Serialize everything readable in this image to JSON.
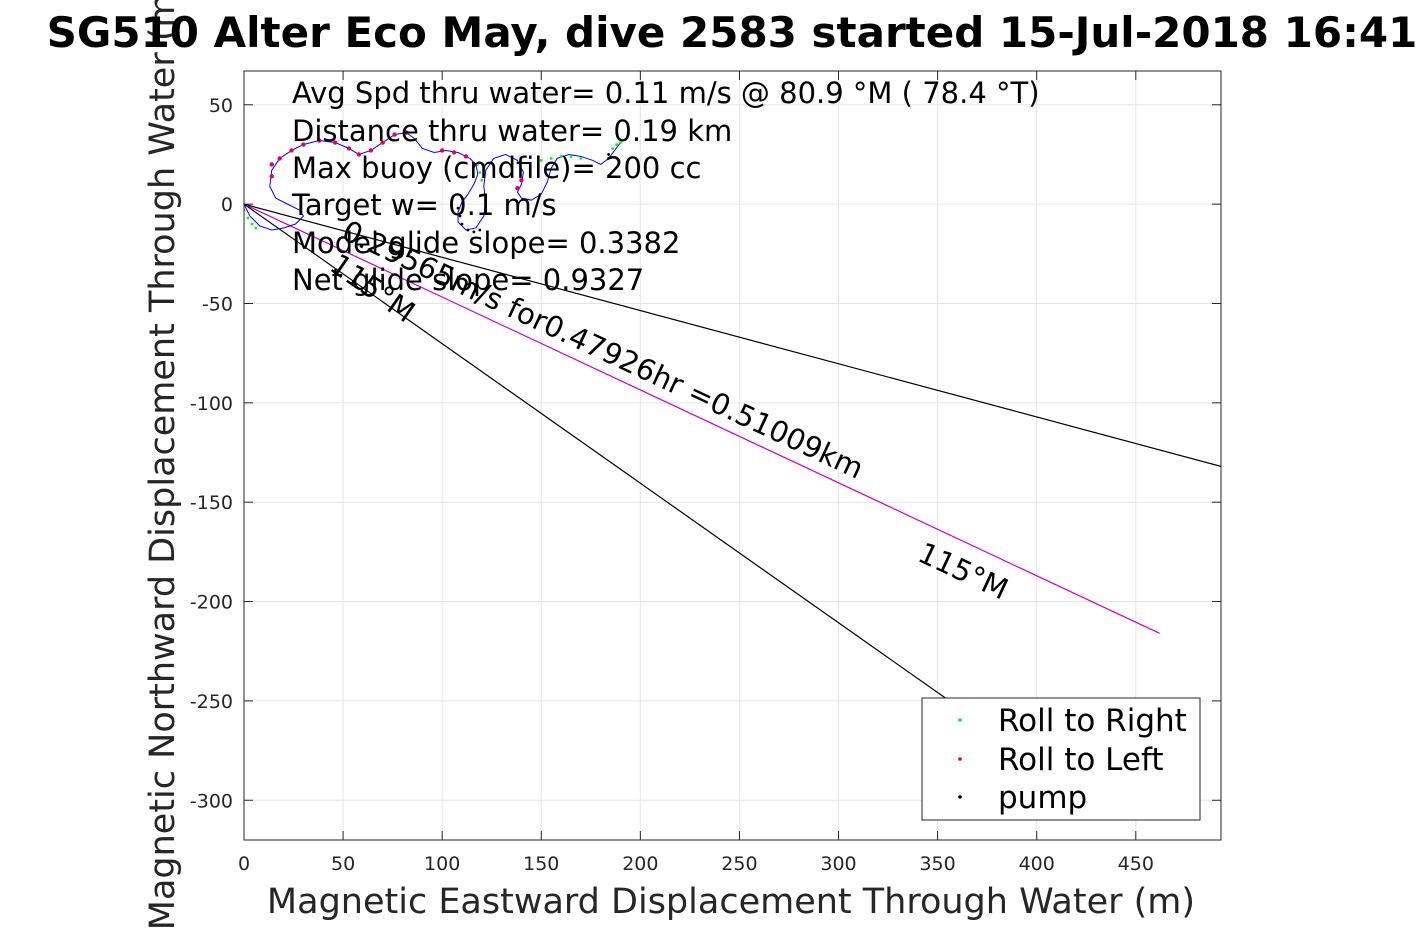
{
  "chart_data": {
    "type": "scatter",
    "title": "SG510 Alter Eco May, dive 2583 started 15-Jul-2018 16:41",
    "xlabel": "Magnetic Eastward Displacement Through Water (m)",
    "ylabel": "Magnetic Northward Displacement Through Water (m)",
    "xlim": [
      0,
      493
    ],
    "ylim": [
      -320,
      67
    ],
    "xticks": [
      0,
      50,
      100,
      150,
      200,
      250,
      300,
      350,
      400,
      450
    ],
    "yticks": [
      50,
      0,
      -50,
      -100,
      -150,
      -200,
      -250,
      -300
    ],
    "grid": true,
    "annotations": [
      "Avg Spd thru water=  0.11 m/s @  80.9 °M ( 78.4 °T)",
      "Distance thru water=  0.19 km",
      "Max buoy (cmdfile)= 200 cc",
      "Target w= 0.1 m/s",
      "Model glide slope= 0.3382",
      "Net glide slope= 0.9327"
    ],
    "line_labels": {
      "upper_speed": "0.29565m/s for0.47926hr =0.51009km",
      "lower_heading": "115°M",
      "heading_label": "115°M"
    },
    "reference_lines": [
      {
        "name": "upper",
        "from": [
          0,
          0
        ],
        "to": [
          493,
          -132
        ],
        "color": "#000000"
      },
      {
        "name": "drift",
        "from": [
          0,
          0
        ],
        "to": [
          462,
          -216
        ],
        "color": "#cc00cc"
      },
      {
        "name": "lower",
        "from": [
          0,
          0
        ],
        "to": [
          356,
          -250
        ],
        "color": "#000000"
      }
    ],
    "track": [
      [
        0,
        0
      ],
      [
        3,
        -6
      ],
      [
        8,
        -11
      ],
      [
        14,
        -13
      ],
      [
        20,
        -12
      ],
      [
        26,
        -10
      ],
      [
        30,
        -6
      ],
      [
        28,
        -3
      ],
      [
        22,
        0
      ],
      [
        16,
        3
      ],
      [
        13,
        9
      ],
      [
        14,
        17
      ],
      [
        18,
        23
      ],
      [
        24,
        27
      ],
      [
        30,
        30
      ],
      [
        38,
        32
      ],
      [
        46,
        31
      ],
      [
        53,
        28
      ],
      [
        58,
        25
      ],
      [
        64,
        27
      ],
      [
        70,
        31
      ],
      [
        76,
        35
      ],
      [
        82,
        36
      ],
      [
        86,
        33
      ],
      [
        90,
        28
      ],
      [
        96,
        26
      ],
      [
        102,
        27
      ],
      [
        108,
        26
      ],
      [
        114,
        23
      ],
      [
        117,
        20
      ],
      [
        118,
        15
      ],
      [
        116,
        10
      ],
      [
        113,
        5
      ],
      [
        110,
        1
      ],
      [
        108,
        -4
      ],
      [
        108,
        -9
      ],
      [
        112,
        -13
      ],
      [
        117,
        -12
      ],
      [
        121,
        -6
      ],
      [
        122,
        1
      ],
      [
        121,
        9
      ],
      [
        122,
        17
      ],
      [
        126,
        23
      ],
      [
        132,
        25
      ],
      [
        138,
        22
      ],
      [
        141,
        16
      ],
      [
        140,
        10
      ],
      [
        138,
        6
      ],
      [
        140,
        3
      ],
      [
        145,
        2
      ],
      [
        150,
        5
      ],
      [
        153,
        11
      ],
      [
        155,
        18
      ],
      [
        158,
        23
      ],
      [
        164,
        25
      ],
      [
        170,
        24
      ],
      [
        176,
        22
      ],
      [
        180,
        20
      ],
      [
        184,
        23
      ],
      [
        187,
        27
      ],
      [
        190,
        31
      ]
    ],
    "roll_right_points": [
      [
        0,
        -3
      ],
      [
        2,
        -7
      ],
      [
        4,
        -10
      ],
      [
        6,
        -12
      ],
      [
        118,
        20
      ],
      [
        119,
        16
      ],
      [
        120,
        12
      ],
      [
        150,
        22
      ],
      [
        155,
        23
      ],
      [
        160,
        24
      ],
      [
        165,
        24
      ],
      [
        170,
        23
      ],
      [
        186,
        28
      ],
      [
        188,
        30
      ],
      [
        190,
        31
      ]
    ],
    "roll_left_points": [
      [
        14,
        14
      ],
      [
        14,
        20
      ],
      [
        18,
        23
      ],
      [
        24,
        27
      ],
      [
        30,
        30
      ],
      [
        38,
        32
      ],
      [
        46,
        31
      ],
      [
        53,
        28
      ],
      [
        58,
        25
      ],
      [
        64,
        27
      ],
      [
        70,
        31
      ],
      [
        76,
        35
      ],
      [
        82,
        36
      ],
      [
        100,
        27
      ],
      [
        106,
        26
      ],
      [
        112,
        24
      ],
      [
        138,
        8
      ],
      [
        140,
        12
      ]
    ],
    "pump_points": [
      [
        108,
        -2
      ],
      [
        109,
        -6
      ],
      [
        110,
        -10
      ],
      [
        113,
        -13
      ],
      [
        116,
        -14
      ],
      [
        119,
        -13
      ],
      [
        184,
        25
      ]
    ],
    "legend": {
      "position": "bottom-right",
      "entries": [
        {
          "label": "Roll to Right",
          "color": "#00ff00"
        },
        {
          "label": "Roll to Left",
          "color": "#ff0000"
        },
        {
          "label": "pump",
          "color": "#000000"
        }
      ]
    },
    "colors": {
      "track_line": "#0000ff",
      "track_marker_fill": "#cc00cc",
      "grid": "#e6e6e6",
      "axes": "#262626"
    }
  }
}
